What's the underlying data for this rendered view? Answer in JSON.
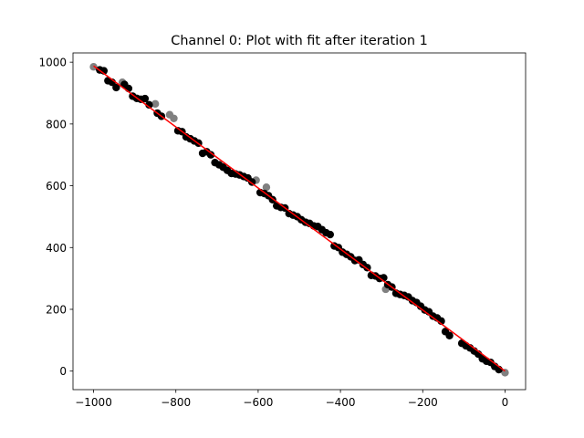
{
  "chart_data": {
    "type": "scatter",
    "title": "Channel 0: Plot with fit after iteration 1",
    "xlabel": "",
    "ylabel": "",
    "xlim": [
      -1050,
      50
    ],
    "ylim": [
      -60,
      1030
    ],
    "xticks": [
      -1000,
      -800,
      -600,
      -400,
      -200,
      0
    ],
    "xtick_labels": [
      "−1000",
      "−800",
      "−600",
      "−400",
      "−200",
      "0"
    ],
    "yticks": [
      0,
      200,
      400,
      600,
      800,
      1000
    ],
    "ytick_labels": [
      "0",
      "200",
      "400",
      "600",
      "800",
      "1000"
    ],
    "grid": false,
    "legend": "none",
    "colors": {
      "inlier": "#000000",
      "outlier": "#808080",
      "fit": "#ff0000"
    },
    "series": [
      {
        "role": "inliers",
        "marker": "circle",
        "points": [
          [
            -985,
            975
          ],
          [
            -975,
            972
          ],
          [
            -965,
            940
          ],
          [
            -955,
            935
          ],
          [
            -945,
            918
          ],
          [
            -925,
            928
          ],
          [
            -915,
            915
          ],
          [
            -905,
            890
          ],
          [
            -895,
            883
          ],
          [
            -885,
            880
          ],
          [
            -875,
            882
          ],
          [
            -865,
            862
          ],
          [
            -845,
            835
          ],
          [
            -835,
            825
          ],
          [
            -795,
            778
          ],
          [
            -785,
            775
          ],
          [
            -775,
            758
          ],
          [
            -765,
            752
          ],
          [
            -755,
            745
          ],
          [
            -745,
            738
          ],
          [
            -735,
            705
          ],
          [
            -725,
            710
          ],
          [
            -715,
            700
          ],
          [
            -705,
            675
          ],
          [
            -695,
            668
          ],
          [
            -685,
            660
          ],
          [
            -675,
            650
          ],
          [
            -665,
            640
          ],
          [
            -655,
            638
          ],
          [
            -645,
            635
          ],
          [
            -635,
            630
          ],
          [
            -625,
            625
          ],
          [
            -615,
            612
          ],
          [
            -595,
            578
          ],
          [
            -585,
            575
          ],
          [
            -575,
            568
          ],
          [
            -565,
            555
          ],
          [
            -555,
            535
          ],
          [
            -545,
            530
          ],
          [
            -535,
            528
          ],
          [
            -525,
            510
          ],
          [
            -515,
            505
          ],
          [
            -505,
            500
          ],
          [
            -495,
            490
          ],
          [
            -485,
            482
          ],
          [
            -475,
            478
          ],
          [
            -465,
            470
          ],
          [
            -455,
            468
          ],
          [
            -445,
            458
          ],
          [
            -435,
            448
          ],
          [
            -425,
            442
          ],
          [
            -415,
            405
          ],
          [
            -405,
            400
          ],
          [
            -395,
            385
          ],
          [
            -385,
            378
          ],
          [
            -375,
            370
          ],
          [
            -365,
            358
          ],
          [
            -355,
            360
          ],
          [
            -345,
            345
          ],
          [
            -335,
            335
          ],
          [
            -325,
            310
          ],
          [
            -315,
            308
          ],
          [
            -305,
            300
          ],
          [
            -295,
            302
          ],
          [
            -285,
            280
          ],
          [
            -275,
            272
          ],
          [
            -265,
            252
          ],
          [
            -255,
            248
          ],
          [
            -245,
            245
          ],
          [
            -235,
            240
          ],
          [
            -225,
            228
          ],
          [
            -215,
            222
          ],
          [
            -205,
            210
          ],
          [
            -195,
            198
          ],
          [
            -185,
            192
          ],
          [
            -175,
            178
          ],
          [
            -165,
            172
          ],
          [
            -155,
            162
          ],
          [
            -145,
            128
          ],
          [
            -135,
            115
          ],
          [
            -105,
            90
          ],
          [
            -95,
            82
          ],
          [
            -85,
            75
          ],
          [
            -75,
            65
          ],
          [
            -65,
            55
          ],
          [
            -55,
            40
          ],
          [
            -45,
            32
          ],
          [
            -35,
            28
          ],
          [
            -25,
            15
          ],
          [
            -15,
            5
          ]
        ]
      },
      {
        "role": "outliers",
        "marker": "circle",
        "points": [
          [
            -1000,
            985
          ],
          [
            -930,
            935
          ],
          [
            -850,
            865
          ],
          [
            -815,
            830
          ],
          [
            -805,
            818
          ],
          [
            -605,
            618
          ],
          [
            -580,
            595
          ],
          [
            -290,
            265
          ],
          [
            0,
            -5
          ]
        ]
      }
    ],
    "fit": {
      "x": [
        -1000,
        0
      ],
      "y": [
        988,
        0
      ]
    }
  }
}
